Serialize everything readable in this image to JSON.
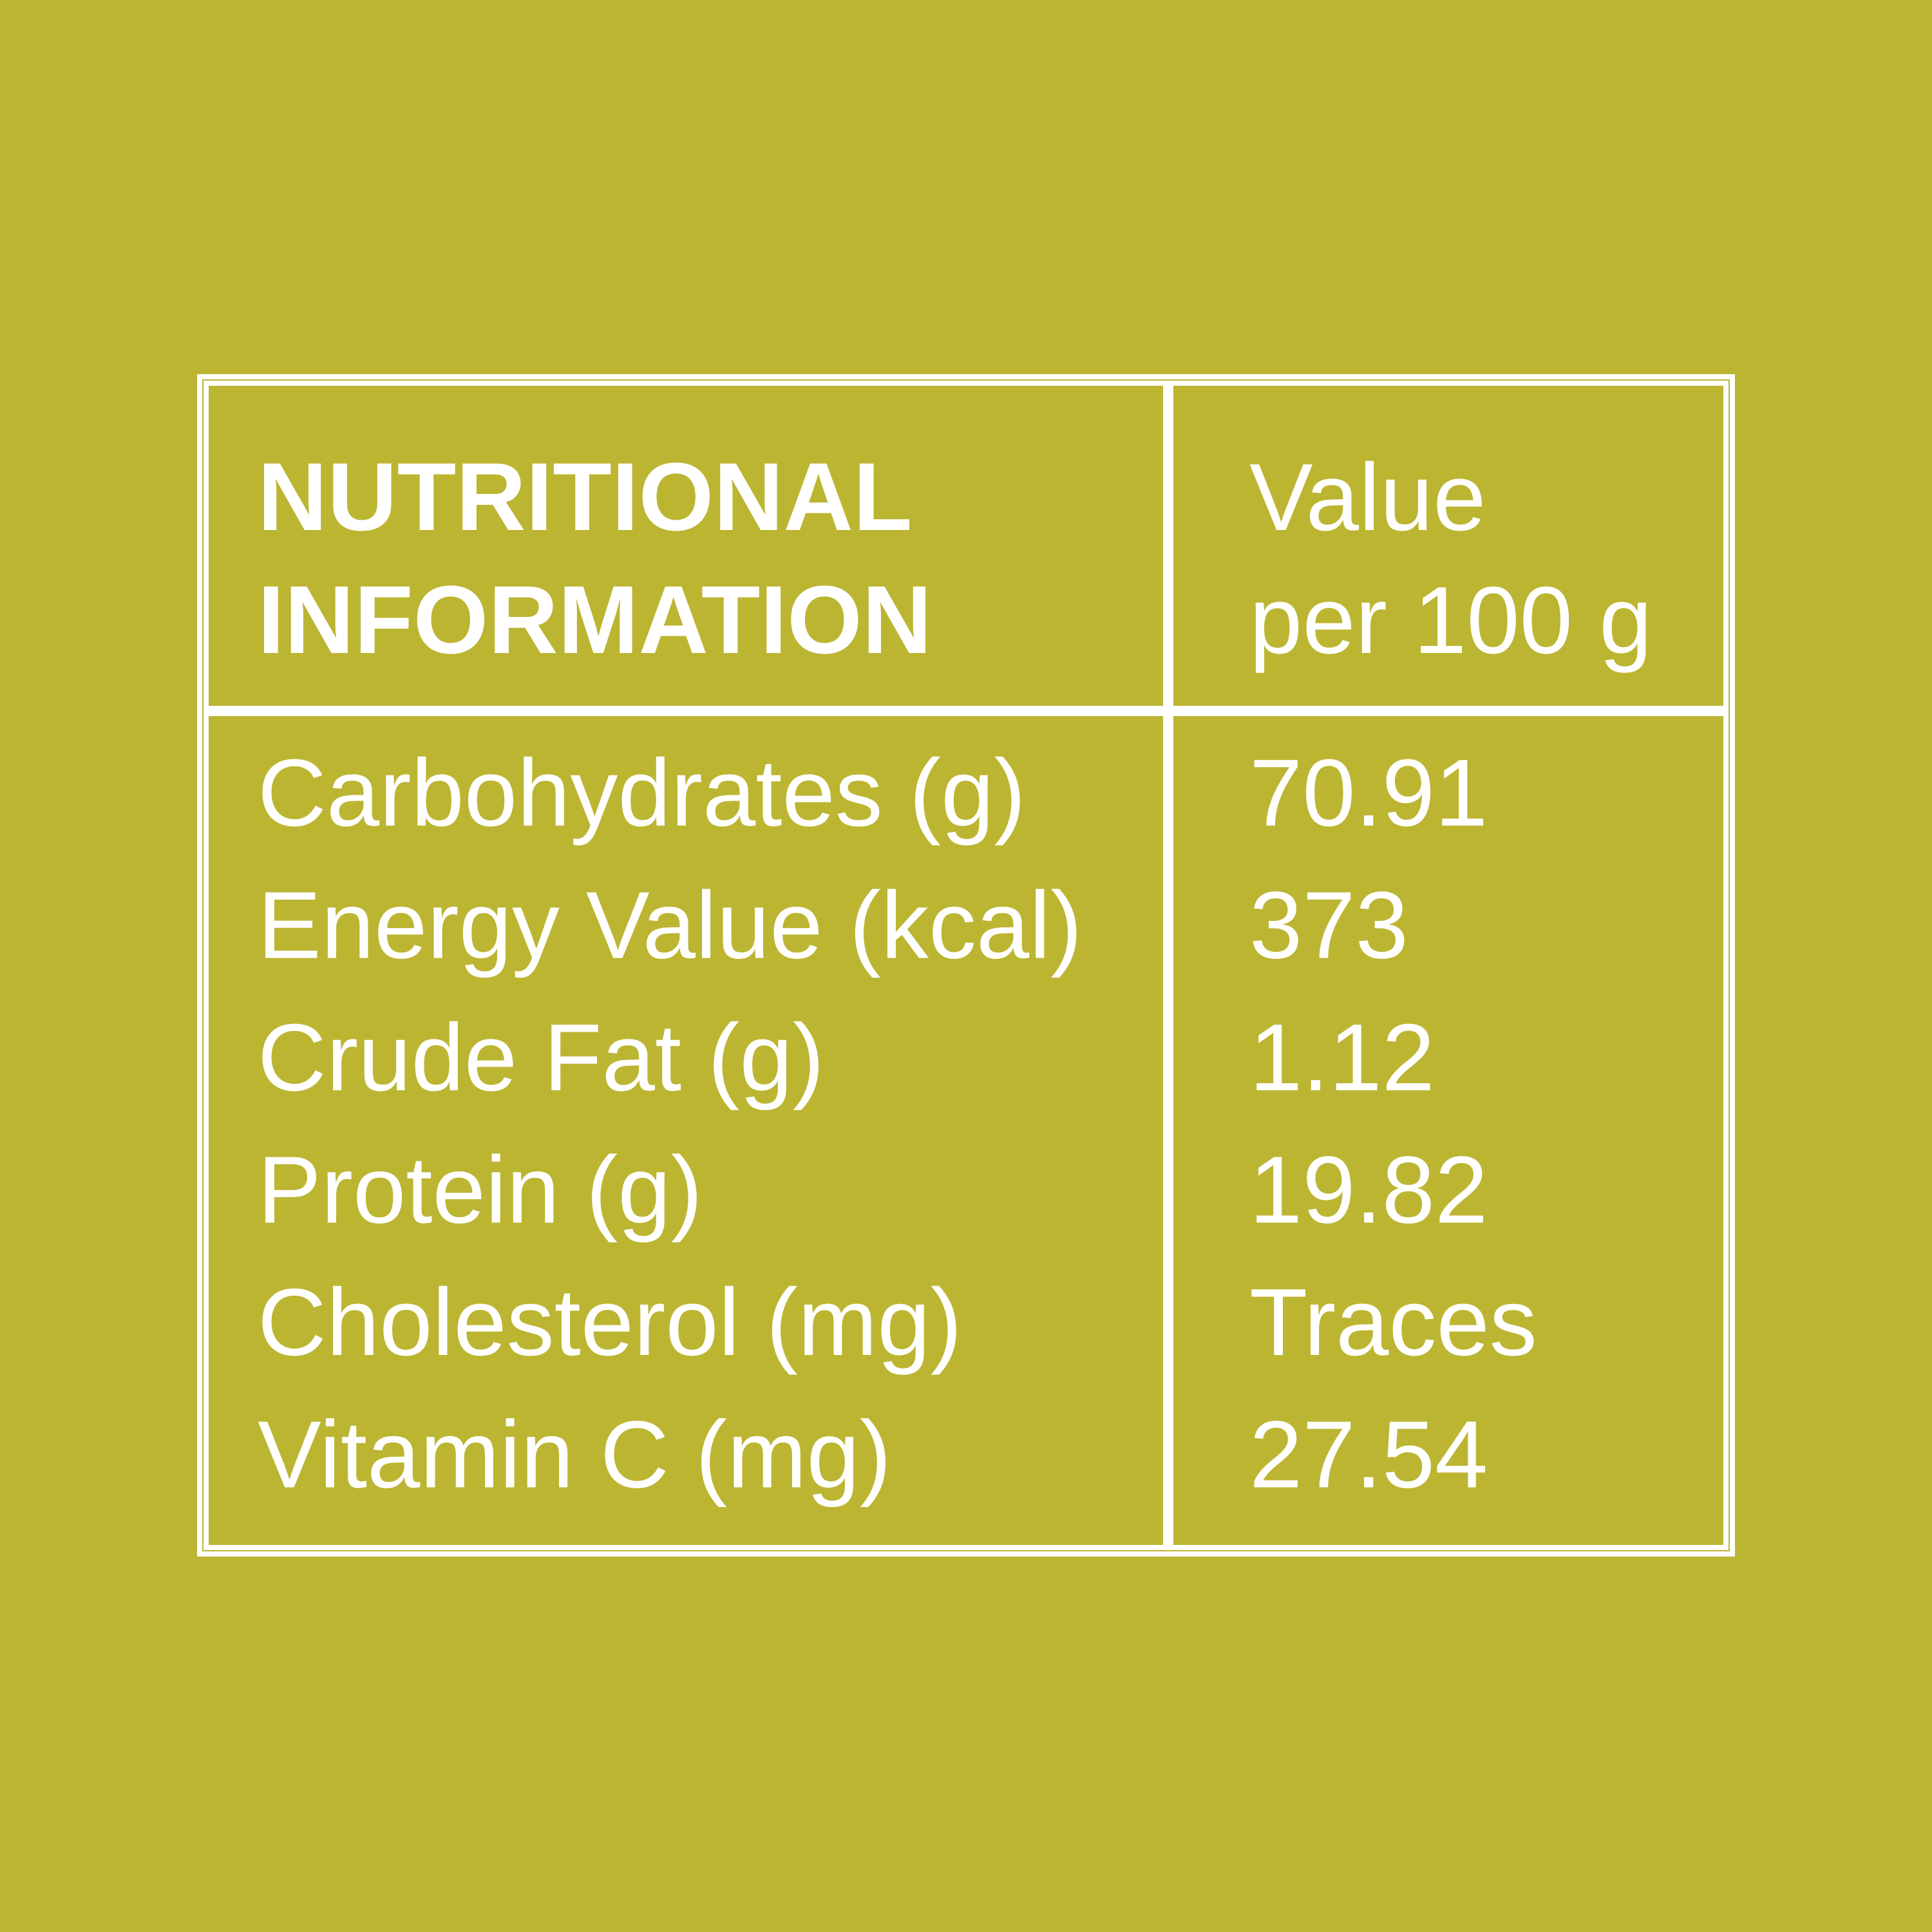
{
  "table": {
    "header": [
      [
        "NUTRITIONAL",
        "INFORMATION"
      ],
      [
        "Value",
        "per 100 g"
      ]
    ],
    "rows": [
      [
        "Carbohydrates (g)",
        "70.91"
      ],
      [
        "Energy Value (kcal)",
        "373"
      ],
      [
        "Crude Fat (g)",
        "1.12"
      ],
      [
        "Protein (g)",
        "19.82"
      ],
      [
        "Cholesterol (mg)",
        "Traces"
      ],
      [
        "Vitamin C (mg)",
        "27.54"
      ]
    ]
  }
}
